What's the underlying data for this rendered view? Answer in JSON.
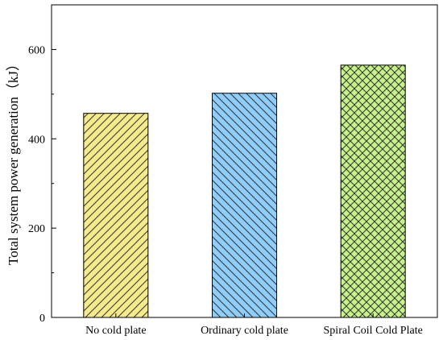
{
  "chart_data": {
    "type": "bar",
    "title": "",
    "xlabel": "",
    "ylabel": "Total system power generation（kJ）",
    "categories": [
      "No cold plate",
      "Ordinary cold plate",
      "Spiral Coil Cold Plate"
    ],
    "values": [
      457,
      502,
      565
    ],
    "ylim": [
      0,
      700
    ],
    "yticks": [
      0,
      200,
      400,
      600
    ],
    "grid": false,
    "legend": "none",
    "colors": [
      "#f5ea8c",
      "#8fcdfa",
      "#c6f28a"
    ],
    "hatches": [
      "diagonal-up",
      "diagonal-down",
      "cross"
    ]
  }
}
